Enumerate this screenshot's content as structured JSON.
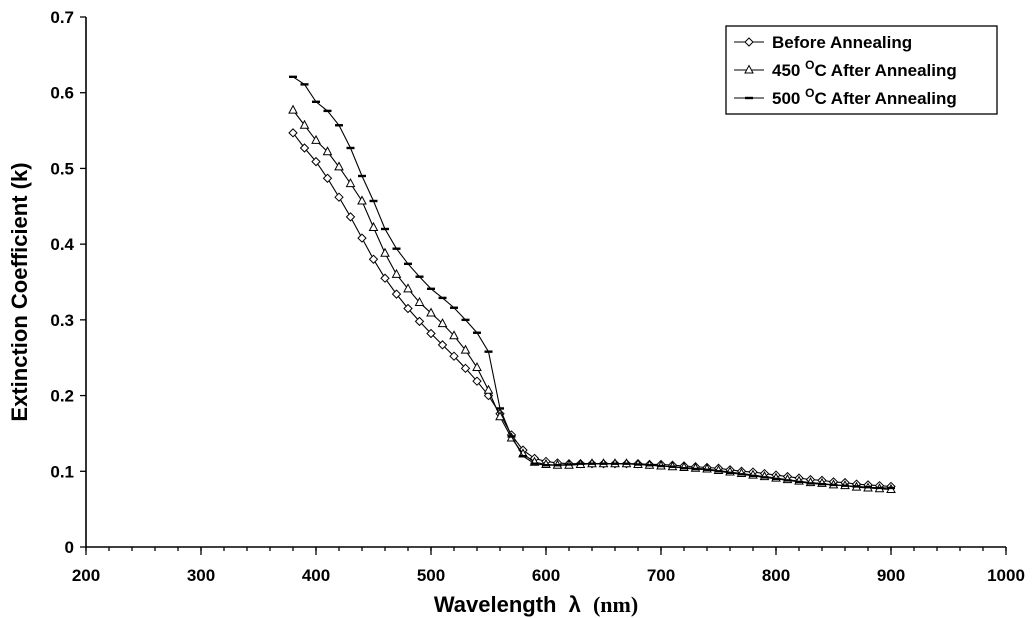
{
  "chart_data": {
    "type": "line",
    "title": "",
    "xlabel": "Wavelength",
    "xlabel_symbol": "λ",
    "xlabel_unit": "(nm)",
    "ylabel": "Extinction Coefficient (k)",
    "xlim": [
      200,
      1000
    ],
    "ylim": [
      0,
      0.7
    ],
    "x_ticks": [
      200,
      300,
      400,
      500,
      600,
      700,
      800,
      900,
      1000
    ],
    "x_tick_labels": [
      "200",
      "300",
      "400",
      "500",
      "600",
      "700",
      "800",
      "900",
      "1000"
    ],
    "y_ticks": [
      0,
      0.1,
      0.2,
      0.3,
      0.4,
      0.5,
      0.6,
      0.7
    ],
    "y_tick_labels": [
      "0",
      "0.1",
      "0.2",
      "0.3",
      "0.4",
      "0.5",
      "0.6",
      "0.7"
    ],
    "x_minor_step": 20,
    "grid": false,
    "legend_position": "top-right",
    "x": [
      380,
      390,
      400,
      410,
      420,
      430,
      440,
      450,
      460,
      470,
      480,
      490,
      500,
      510,
      520,
      530,
      540,
      550,
      560,
      570,
      580,
      590,
      600,
      610,
      620,
      630,
      640,
      650,
      660,
      670,
      680,
      690,
      700,
      710,
      720,
      730,
      740,
      750,
      760,
      770,
      780,
      790,
      800,
      810,
      820,
      830,
      840,
      850,
      860,
      870,
      880,
      890,
      900
    ],
    "series": [
      {
        "name": "Before Annealing",
        "marker": "diamond",
        "values": [
          0.547,
          0.527,
          0.509,
          0.487,
          0.462,
          0.436,
          0.408,
          0.38,
          0.355,
          0.334,
          0.315,
          0.298,
          0.282,
          0.267,
          0.252,
          0.236,
          0.219,
          0.2,
          0.176,
          0.148,
          0.128,
          0.117,
          0.113,
          0.111,
          0.11,
          0.11,
          0.11,
          0.11,
          0.11,
          0.11,
          0.11,
          0.109,
          0.109,
          0.108,
          0.107,
          0.106,
          0.105,
          0.104,
          0.102,
          0.1,
          0.099,
          0.097,
          0.095,
          0.093,
          0.091,
          0.089,
          0.088,
          0.086,
          0.085,
          0.083,
          0.082,
          0.081,
          0.08
        ]
      },
      {
        "name": "450 ᴼC After Annealing",
        "label_parts": [
          "450 ",
          "O",
          "C After Annealing"
        ],
        "marker": "triangle",
        "values": [
          0.577,
          0.557,
          0.537,
          0.522,
          0.502,
          0.48,
          0.457,
          0.422,
          0.388,
          0.36,
          0.341,
          0.323,
          0.309,
          0.295,
          0.279,
          0.26,
          0.237,
          0.207,
          0.172,
          0.144,
          0.123,
          0.112,
          0.109,
          0.108,
          0.108,
          0.109,
          0.11,
          0.11,
          0.11,
          0.11,
          0.109,
          0.108,
          0.107,
          0.106,
          0.105,
          0.104,
          0.103,
          0.101,
          0.099,
          0.097,
          0.095,
          0.093,
          0.091,
          0.089,
          0.087,
          0.085,
          0.084,
          0.082,
          0.081,
          0.079,
          0.078,
          0.077,
          0.076
        ]
      },
      {
        "name": "500 ᴼC After Annealing",
        "label_parts": [
          "500 ",
          "O",
          "C After Annealing"
        ],
        "marker": "dash",
        "values": [
          0.621,
          0.611,
          0.588,
          0.576,
          0.557,
          0.527,
          0.49,
          0.457,
          0.42,
          0.394,
          0.374,
          0.357,
          0.341,
          0.329,
          0.316,
          0.3,
          0.283,
          0.258,
          0.183,
          0.146,
          0.12,
          0.11,
          0.108,
          0.108,
          0.109,
          0.11,
          0.11,
          0.11,
          0.11,
          0.11,
          0.109,
          0.108,
          0.107,
          0.106,
          0.104,
          0.103,
          0.102,
          0.1,
          0.098,
          0.096,
          0.094,
          0.092,
          0.09,
          0.088,
          0.086,
          0.084,
          0.083,
          0.082,
          0.081,
          0.08,
          0.079,
          0.078,
          0.078
        ]
      }
    ]
  }
}
